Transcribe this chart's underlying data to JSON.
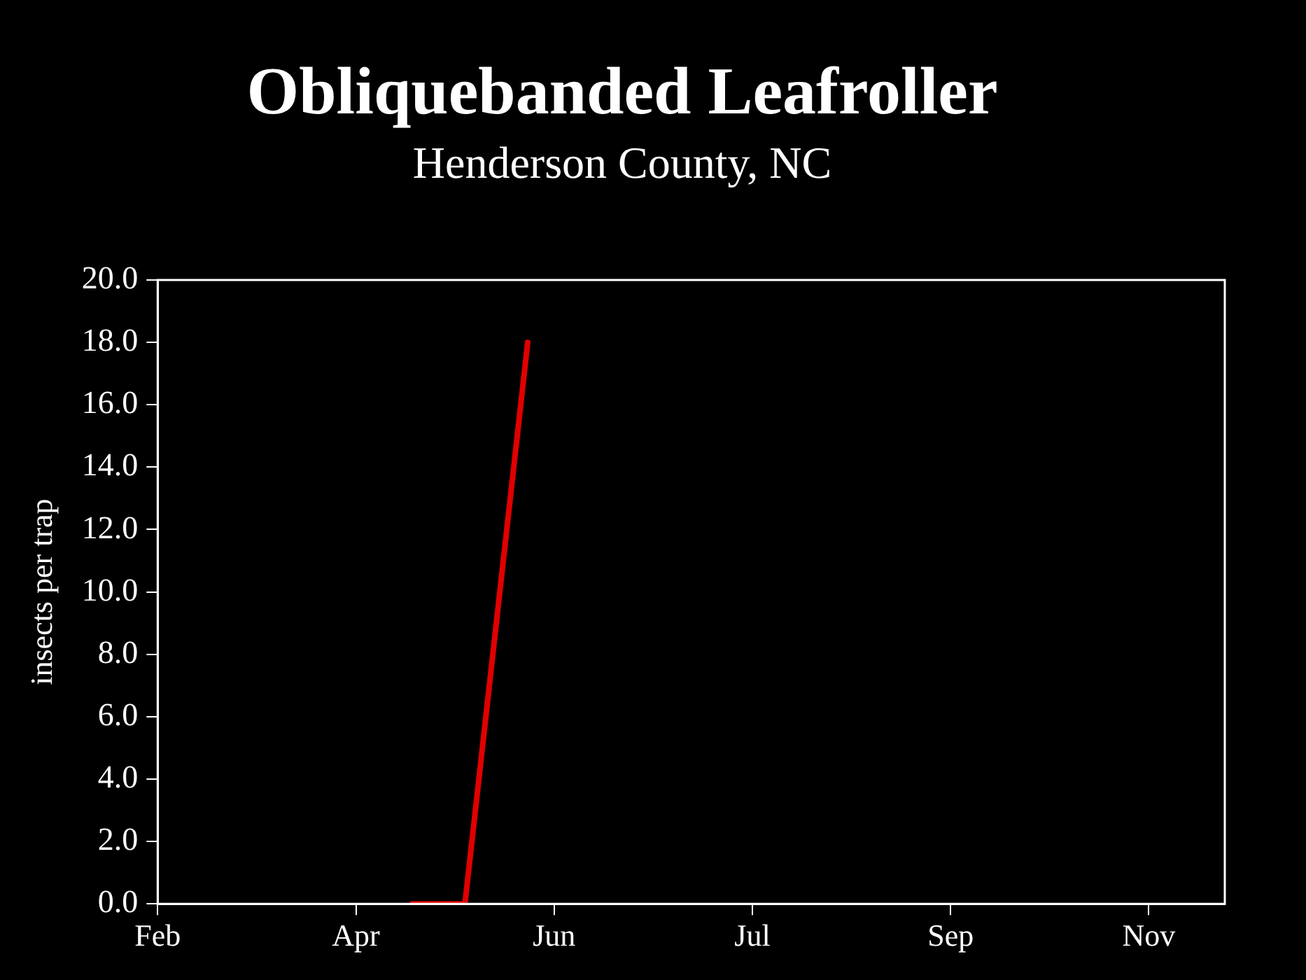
{
  "chart_data": {
    "type": "line",
    "title": "Obliquebanded Leafroller",
    "subtitle": "Henderson County, NC",
    "ylabel": "insects per trap",
    "x": [
      "--04-19",
      "--05-05",
      "--05-24"
    ],
    "series": [
      {
        "color": "#e00000",
        "values": [
          0,
          0,
          18.0
        ]
      }
    ],
    "xlim": [
      "--02-01",
      "--12-21"
    ],
    "xticks": [
      {
        "value": "--02-01",
        "label": "Feb"
      },
      {
        "value": "--04-02",
        "label": "Apr"
      },
      {
        "value": "--06-01",
        "label": "Jun"
      },
      {
        "value": "--07-31",
        "label": "Jul"
      },
      {
        "value": "--09-29",
        "label": "Sep"
      },
      {
        "value": "--11-28",
        "label": "Nov"
      }
    ],
    "ylim": [
      0,
      20
    ],
    "yticks": [
      {
        "value": 0,
        "label": "0.0"
      },
      {
        "value": 2,
        "label": "2.0"
      },
      {
        "value": 4,
        "label": "4.0"
      },
      {
        "value": 6,
        "label": "6.0"
      },
      {
        "value": 8,
        "label": "8.0"
      },
      {
        "value": 10,
        "label": "10.0"
      },
      {
        "value": 12,
        "label": "12.0"
      },
      {
        "value": 14,
        "label": "14.0"
      },
      {
        "value": 16,
        "label": "16.0"
      },
      {
        "value": 18,
        "label": "18.0"
      },
      {
        "value": 20,
        "label": "20.0"
      }
    ],
    "grid": false,
    "legend": false,
    "marker": "none",
    "line_style": "solid"
  }
}
